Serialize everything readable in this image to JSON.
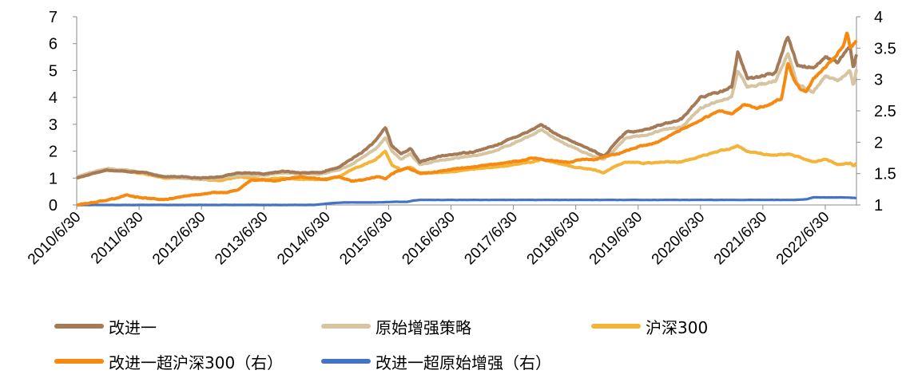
{
  "chart_data": {
    "type": "line",
    "x_ticks": [
      "2010/6/30",
      "2011/6/30",
      "2012/6/30",
      "2013/6/30",
      "2014/6/30",
      "2015/6/30",
      "2016/6/30",
      "2017/6/30",
      "2018/6/30",
      "2019/6/30",
      "2020/6/30",
      "2021/6/30",
      "2022/6/30"
    ],
    "y_left": {
      "range": [
        0,
        7
      ],
      "ticks": [
        "0",
        "1",
        "2",
        "3",
        "4",
        "5",
        "6",
        "7"
      ]
    },
    "y_right": {
      "range": [
        1,
        4
      ],
      "ticks": [
        "1",
        "1.5",
        "2",
        "2.5",
        "3",
        "3.5",
        "4"
      ]
    },
    "x_range": [
      2010.5,
      2023.0
    ],
    "grid": false,
    "legend_position": "bottom",
    "series": [
      {
        "name": "改进一",
        "axis": "left",
        "color": "#A47B56",
        "points": [
          [
            2010.5,
            1.0
          ],
          [
            2010.8,
            1.2
          ],
          [
            2011.0,
            1.3
          ],
          [
            2011.3,
            1.25
          ],
          [
            2011.6,
            1.2
          ],
          [
            2011.9,
            1.05
          ],
          [
            2012.2,
            1.05
          ],
          [
            2012.5,
            1.0
          ],
          [
            2012.8,
            1.05
          ],
          [
            2013.1,
            1.2
          ],
          [
            2013.5,
            1.15
          ],
          [
            2013.8,
            1.25
          ],
          [
            2014.1,
            1.2
          ],
          [
            2014.4,
            1.2
          ],
          [
            2014.7,
            1.4
          ],
          [
            2014.9,
            1.7
          ],
          [
            2015.1,
            2.0
          ],
          [
            2015.3,
            2.4
          ],
          [
            2015.45,
            2.9
          ],
          [
            2015.55,
            2.2
          ],
          [
            2015.7,
            1.9
          ],
          [
            2015.85,
            2.1
          ],
          [
            2016.0,
            1.6
          ],
          [
            2016.3,
            1.8
          ],
          [
            2016.6,
            1.9
          ],
          [
            2016.9,
            2.0
          ],
          [
            2017.2,
            2.2
          ],
          [
            2017.5,
            2.5
          ],
          [
            2017.8,
            2.8
          ],
          [
            2017.95,
            3.0
          ],
          [
            2018.2,
            2.6
          ],
          [
            2018.5,
            2.3
          ],
          [
            2018.8,
            2.0
          ],
          [
            2018.95,
            1.8
          ],
          [
            2019.1,
            2.2
          ],
          [
            2019.3,
            2.7
          ],
          [
            2019.6,
            2.8
          ],
          [
            2019.9,
            3.0
          ],
          [
            2020.2,
            3.2
          ],
          [
            2020.5,
            4.0
          ],
          [
            2020.8,
            4.2
          ],
          [
            2021.0,
            4.4
          ],
          [
            2021.1,
            5.7
          ],
          [
            2021.25,
            4.7
          ],
          [
            2021.5,
            4.8
          ],
          [
            2021.7,
            4.9
          ],
          [
            2021.9,
            6.3
          ],
          [
            2022.05,
            5.2
          ],
          [
            2022.3,
            5.1
          ],
          [
            2022.5,
            5.5
          ],
          [
            2022.7,
            5.3
          ],
          [
            2022.9,
            5.9
          ],
          [
            2022.95,
            5.1
          ],
          [
            2023.0,
            5.6
          ]
        ]
      },
      {
        "name": "原始增强策略",
        "axis": "left",
        "color": "#D7C4A1",
        "points": [
          [
            2010.5,
            1.05
          ],
          [
            2010.8,
            1.25
          ],
          [
            2011.0,
            1.35
          ],
          [
            2011.3,
            1.3
          ],
          [
            2011.6,
            1.2
          ],
          [
            2011.9,
            1.05
          ],
          [
            2012.2,
            1.0
          ],
          [
            2012.5,
            0.95
          ],
          [
            2012.8,
            1.0
          ],
          [
            2013.1,
            1.1
          ],
          [
            2013.5,
            1.1
          ],
          [
            2013.8,
            1.2
          ],
          [
            2014.1,
            1.15
          ],
          [
            2014.4,
            1.15
          ],
          [
            2014.7,
            1.3
          ],
          [
            2014.9,
            1.5
          ],
          [
            2015.1,
            1.8
          ],
          [
            2015.3,
            2.1
          ],
          [
            2015.45,
            2.5
          ],
          [
            2015.55,
            2.0
          ],
          [
            2015.7,
            1.7
          ],
          [
            2015.85,
            1.9
          ],
          [
            2016.0,
            1.5
          ],
          [
            2016.3,
            1.65
          ],
          [
            2016.6,
            1.75
          ],
          [
            2016.9,
            1.85
          ],
          [
            2017.2,
            2.0
          ],
          [
            2017.5,
            2.3
          ],
          [
            2017.8,
            2.6
          ],
          [
            2017.95,
            2.8
          ],
          [
            2018.2,
            2.4
          ],
          [
            2018.5,
            2.1
          ],
          [
            2018.8,
            1.8
          ],
          [
            2018.95,
            1.7
          ],
          [
            2019.1,
            2.0
          ],
          [
            2019.3,
            2.5
          ],
          [
            2019.6,
            2.6
          ],
          [
            2019.9,
            2.8
          ],
          [
            2020.2,
            2.9
          ],
          [
            2020.5,
            3.6
          ],
          [
            2020.8,
            3.9
          ],
          [
            2021.0,
            4.0
          ],
          [
            2021.1,
            5.0
          ],
          [
            2021.25,
            4.4
          ],
          [
            2021.5,
            4.5
          ],
          [
            2021.7,
            4.6
          ],
          [
            2021.9,
            5.6
          ],
          [
            2022.05,
            4.5
          ],
          [
            2022.3,
            4.2
          ],
          [
            2022.5,
            4.8
          ],
          [
            2022.7,
            4.6
          ],
          [
            2022.9,
            5.0
          ],
          [
            2022.95,
            4.4
          ],
          [
            2023.0,
            5.0
          ]
        ]
      },
      {
        "name": "沪深300",
        "axis": "left",
        "color": "#F4B43A",
        "points": [
          [
            2010.5,
            1.0
          ],
          [
            2010.8,
            1.2
          ],
          [
            2011.0,
            1.3
          ],
          [
            2011.3,
            1.25
          ],
          [
            2011.6,
            1.15
          ],
          [
            2011.9,
            1.0
          ],
          [
            2012.2,
            1.0
          ],
          [
            2012.5,
            0.95
          ],
          [
            2012.8,
            0.9
          ],
          [
            2013.1,
            1.05
          ],
          [
            2013.5,
            0.95
          ],
          [
            2013.8,
            1.0
          ],
          [
            2014.1,
            0.95
          ],
          [
            2014.4,
            0.95
          ],
          [
            2014.7,
            1.05
          ],
          [
            2014.9,
            1.3
          ],
          [
            2015.1,
            1.5
          ],
          [
            2015.3,
            1.7
          ],
          [
            2015.45,
            2.0
          ],
          [
            2015.55,
            1.5
          ],
          [
            2015.7,
            1.3
          ],
          [
            2015.85,
            1.4
          ],
          [
            2016.0,
            1.2
          ],
          [
            2016.3,
            1.2
          ],
          [
            2016.6,
            1.25
          ],
          [
            2016.9,
            1.35
          ],
          [
            2017.2,
            1.4
          ],
          [
            2017.5,
            1.5
          ],
          [
            2017.8,
            1.6
          ],
          [
            2017.95,
            1.7
          ],
          [
            2018.2,
            1.55
          ],
          [
            2018.5,
            1.4
          ],
          [
            2018.8,
            1.3
          ],
          [
            2018.95,
            1.2
          ],
          [
            2019.1,
            1.4
          ],
          [
            2019.3,
            1.6
          ],
          [
            2019.6,
            1.55
          ],
          [
            2019.9,
            1.6
          ],
          [
            2020.2,
            1.6
          ],
          [
            2020.5,
            1.8
          ],
          [
            2020.8,
            2.0
          ],
          [
            2021.0,
            2.1
          ],
          [
            2021.1,
            2.2
          ],
          [
            2021.25,
            2.0
          ],
          [
            2021.5,
            1.9
          ],
          [
            2021.7,
            1.85
          ],
          [
            2021.9,
            1.9
          ],
          [
            2022.05,
            1.8
          ],
          [
            2022.3,
            1.6
          ],
          [
            2022.5,
            1.7
          ],
          [
            2022.7,
            1.5
          ],
          [
            2022.9,
            1.55
          ],
          [
            2022.95,
            1.45
          ],
          [
            2023.0,
            1.55
          ]
        ]
      },
      {
        "name": "改进一超沪深300（右）",
        "axis": "right",
        "color": "#F68A11",
        "points": [
          [
            2010.5,
            1.0
          ],
          [
            2010.7,
            1.03
          ],
          [
            2010.9,
            1.06
          ],
          [
            2011.1,
            1.1
          ],
          [
            2011.3,
            1.16
          ],
          [
            2011.5,
            1.12
          ],
          [
            2011.7,
            1.1
          ],
          [
            2011.9,
            1.08
          ],
          [
            2012.1,
            1.12
          ],
          [
            2012.3,
            1.15
          ],
          [
            2012.5,
            1.17
          ],
          [
            2012.7,
            1.2
          ],
          [
            2012.9,
            1.2
          ],
          [
            2013.1,
            1.25
          ],
          [
            2013.3,
            1.4
          ],
          [
            2013.5,
            1.4
          ],
          [
            2013.7,
            1.38
          ],
          [
            2013.9,
            1.42
          ],
          [
            2014.1,
            1.45
          ],
          [
            2014.3,
            1.43
          ],
          [
            2014.5,
            1.4
          ],
          [
            2014.7,
            1.45
          ],
          [
            2014.9,
            1.38
          ],
          [
            2015.1,
            1.4
          ],
          [
            2015.3,
            1.45
          ],
          [
            2015.45,
            1.42
          ],
          [
            2015.6,
            1.52
          ],
          [
            2015.8,
            1.6
          ],
          [
            2016.0,
            1.5
          ],
          [
            2016.2,
            1.52
          ],
          [
            2016.4,
            1.55
          ],
          [
            2016.6,
            1.58
          ],
          [
            2016.8,
            1.6
          ],
          [
            2017.0,
            1.62
          ],
          [
            2017.2,
            1.65
          ],
          [
            2017.4,
            1.68
          ],
          [
            2017.6,
            1.7
          ],
          [
            2017.8,
            1.75
          ],
          [
            2018.0,
            1.72
          ],
          [
            2018.2,
            1.7
          ],
          [
            2018.4,
            1.68
          ],
          [
            2018.6,
            1.73
          ],
          [
            2018.8,
            1.72
          ],
          [
            2019.0,
            1.78
          ],
          [
            2019.2,
            1.82
          ],
          [
            2019.4,
            1.9
          ],
          [
            2019.6,
            1.95
          ],
          [
            2019.8,
            2.0
          ],
          [
            2020.0,
            2.1
          ],
          [
            2020.2,
            2.2
          ],
          [
            2020.4,
            2.3
          ],
          [
            2020.6,
            2.4
          ],
          [
            2020.8,
            2.5
          ],
          [
            2021.0,
            2.45
          ],
          [
            2021.2,
            2.6
          ],
          [
            2021.4,
            2.55
          ],
          [
            2021.6,
            2.6
          ],
          [
            2021.8,
            2.7
          ],
          [
            2021.9,
            3.25
          ],
          [
            2022.0,
            3.0
          ],
          [
            2022.1,
            2.85
          ],
          [
            2022.2,
            2.8
          ],
          [
            2022.3,
            3.0
          ],
          [
            2022.4,
            3.1
          ],
          [
            2022.6,
            3.3
          ],
          [
            2022.8,
            3.55
          ],
          [
            2022.85,
            3.75
          ],
          [
            2022.9,
            3.5
          ],
          [
            2023.0,
            3.6
          ]
        ]
      },
      {
        "name": "改进一超原始增强（右）",
        "axis": "right",
        "color": "#4472C4",
        "points": [
          [
            2010.5,
            1.0
          ],
          [
            2011.0,
            1.0
          ],
          [
            2012.0,
            1.0
          ],
          [
            2013.0,
            1.0
          ],
          [
            2014.0,
            1.0
          ],
          [
            2014.3,
            1.0
          ],
          [
            2014.6,
            1.03
          ],
          [
            2014.8,
            1.04
          ],
          [
            2015.0,
            1.04
          ],
          [
            2015.3,
            1.04
          ],
          [
            2015.6,
            1.05
          ],
          [
            2015.8,
            1.05
          ],
          [
            2015.9,
            1.07
          ],
          [
            2016.0,
            1.08
          ],
          [
            2016.5,
            1.08
          ],
          [
            2017.0,
            1.08
          ],
          [
            2017.5,
            1.08
          ],
          [
            2018.0,
            1.08
          ],
          [
            2018.5,
            1.08
          ],
          [
            2019.0,
            1.08
          ],
          [
            2019.5,
            1.08
          ],
          [
            2020.0,
            1.08
          ],
          [
            2020.5,
            1.08
          ],
          [
            2021.0,
            1.08
          ],
          [
            2021.5,
            1.08
          ],
          [
            2022.0,
            1.08
          ],
          [
            2022.2,
            1.09
          ],
          [
            2022.3,
            1.12
          ],
          [
            2022.4,
            1.12
          ],
          [
            2022.6,
            1.12
          ],
          [
            2022.8,
            1.12
          ],
          [
            2023.0,
            1.11
          ]
        ]
      }
    ]
  }
}
